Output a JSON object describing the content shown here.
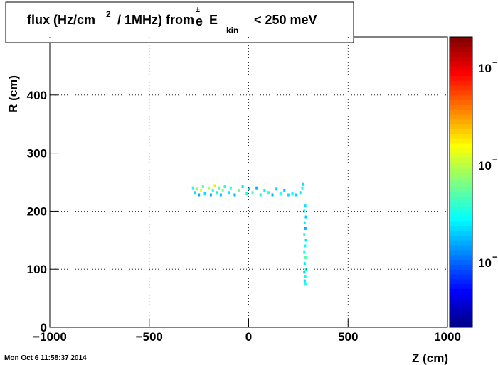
{
  "chart_data": {
    "type": "heatmap",
    "title_parts": [
      "flux (Hz/cm",
      "2",
      "/ 1MHz) from",
      "e",
      "±",
      "E",
      "kin",
      "< 250 meV"
    ],
    "x_label": "Z (cm)",
    "y_label": "R (cm)",
    "timestamp": "Mon Oct  6 11:58:37 2014",
    "xlim": [
      -1000,
      1000
    ],
    "xticks": [
      {
        "value": -1000,
        "label": "−1000"
      },
      {
        "value": -500,
        "label": "−500"
      },
      0,
      500,
      1000
    ],
    "ylim": [
      0,
      500
    ],
    "yticks": [
      0,
      100,
      200,
      300,
      400
    ],
    "grid": true,
    "colormap": "jet",
    "zlim": [
      0,
      1
    ],
    "colorbar_ticks": [
      {
        "base": "10",
        "exponent": "−"
      },
      {
        "base": "10",
        "exponent": "−"
      },
      {
        "base": "10",
        "exponent": "−"
      }
    ],
    "x": [
      -280,
      -270,
      -260,
      -250,
      -240,
      -230,
      -220,
      -200,
      -190,
      -180,
      -170,
      -160,
      -150,
      -140,
      -130,
      -120,
      -100,
      -90,
      -70,
      -50,
      -30,
      -10,
      0,
      20,
      40,
      60,
      80,
      100,
      120,
      140,
      160,
      180,
      200,
      220,
      240,
      260,
      270,
      275,
      285,
      280,
      288,
      282,
      286,
      280,
      288,
      284,
      280,
      286,
      282,
      288,
      280,
      285,
      282,
      286
    ],
    "y": [
      240,
      232,
      238,
      228,
      236,
      242,
      230,
      240,
      228,
      236,
      244,
      232,
      240,
      228,
      236,
      242,
      232,
      240,
      228,
      236,
      242,
      230,
      238,
      232,
      240,
      228,
      236,
      232,
      228,
      238,
      230,
      236,
      228,
      230,
      228,
      232,
      240,
      246,
      210,
      200,
      190,
      180,
      170,
      160,
      150,
      140,
      130,
      120,
      110,
      100,
      95,
      88,
      80,
      75
    ],
    "values": [
      0.4,
      0.35,
      0.5,
      0.3,
      0.6,
      0.45,
      0.35,
      0.55,
      0.3,
      0.4,
      0.65,
      0.38,
      0.45,
      0.32,
      0.5,
      0.4,
      0.36,
      0.42,
      0.3,
      0.48,
      0.35,
      0.4,
      0.33,
      0.45,
      0.3,
      0.38,
      0.36,
      0.42,
      0.3,
      0.34,
      0.4,
      0.32,
      0.35,
      0.38,
      0.33,
      0.36,
      0.4,
      0.35,
      0.35,
      0.4,
      0.33,
      0.36,
      0.3,
      0.42,
      0.35,
      0.38,
      0.4,
      0.45,
      0.36,
      0.4,
      0.33,
      0.38,
      0.35,
      0.4
    ]
  }
}
